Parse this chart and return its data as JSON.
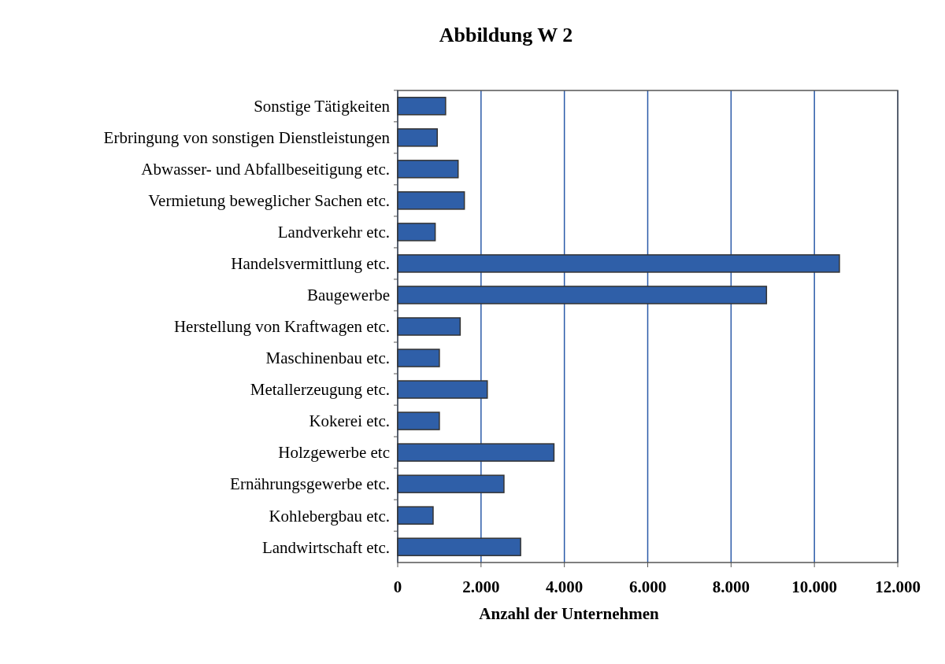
{
  "chart_data": {
    "type": "bar",
    "orientation": "horizontal",
    "title": "Abbildung W  2",
    "xlabel": "Anzahl der Unternehmen",
    "categories": [
      "Sonstige Tätigkeiten",
      "Erbringung von sonstigen Dienstleistungen",
      "Abwasser- und Abfallbeseitigung etc.",
      "Vermietung beweglicher Sachen etc.",
      "Landverkehr etc.",
      "Handelsvermittlung etc.",
      "Baugewerbe",
      "Herstellung von Kraftwagen etc.",
      "Maschinenbau etc.",
      "Metallerzeugung etc.",
      "Kokerei etc.",
      "Holzgewerbe etc",
      "Ernährungsgewerbe etc.",
      "Kohlebergbau etc.",
      "Landwirtschaft etc."
    ],
    "values": [
      1150,
      950,
      1450,
      1600,
      900,
      10600,
      8850,
      1500,
      1000,
      2150,
      1000,
      3750,
      2550,
      850,
      2950
    ],
    "color": "#2f5fa8",
    "xlim": [
      0,
      12000
    ],
    "xticks": [
      {
        "value": 0,
        "label": "0"
      },
      {
        "value": 2000,
        "label": "2.000"
      },
      {
        "value": 4000,
        "label": "4.000"
      },
      {
        "value": 6000,
        "label": "6.000"
      },
      {
        "value": 8000,
        "label": "8.000"
      },
      {
        "value": 10000,
        "label": "10.000"
      },
      {
        "value": 12000,
        "label": "12.000"
      }
    ],
    "grid": "x"
  }
}
